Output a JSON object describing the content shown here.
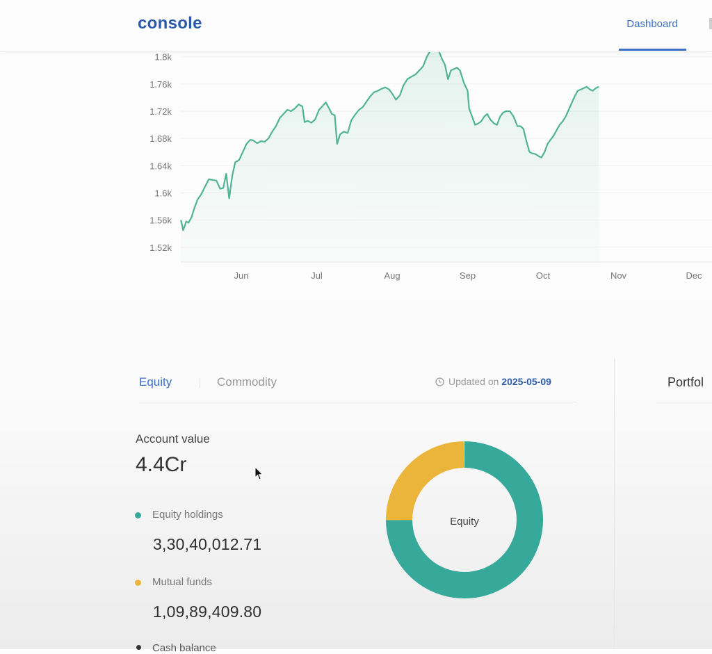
{
  "header": {
    "logo": "console",
    "nav": [
      {
        "label": "Dashboard",
        "active": true
      }
    ]
  },
  "colors": {
    "brand": "#2b5aa8",
    "accent": "#3b6fc6",
    "line": "#4fb394",
    "equity": "#36a99a",
    "mutual_funds": "#ebb53c",
    "cash": "#333333"
  },
  "chart_data": {
    "type": "area",
    "y_ticks": [
      "1.8k",
      "1.76k",
      "1.72k",
      "1.68k",
      "1.64k",
      "1.6k",
      "1.56k",
      "1.52k"
    ],
    "y_tick_values": [
      1800,
      1760,
      1720,
      1680,
      1640,
      1600,
      1560,
      1520
    ],
    "x_ticks": [
      "Jun",
      "Jul",
      "Aug",
      "Sep",
      "Oct",
      "Nov",
      "Dec"
    ],
    "x_tick_months": [
      1,
      2,
      3,
      4,
      5,
      6,
      7
    ],
    "x_range_months": [
      0.2,
      7.25
    ],
    "ylim": [
      1500,
      1808
    ],
    "grid": true,
    "series": [
      {
        "points": [
          [
            0.2,
            1560
          ],
          [
            0.23,
            1545
          ],
          [
            0.27,
            1558
          ],
          [
            0.3,
            1556
          ],
          [
            0.34,
            1564
          ],
          [
            0.38,
            1578
          ],
          [
            0.42,
            1590
          ],
          [
            0.47,
            1598
          ],
          [
            0.51,
            1607
          ],
          [
            0.57,
            1620
          ],
          [
            0.62,
            1619
          ],
          [
            0.67,
            1618
          ],
          [
            0.72,
            1606
          ],
          [
            0.76,
            1607
          ],
          [
            0.8,
            1628
          ],
          [
            0.84,
            1592
          ],
          [
            0.88,
            1625
          ],
          [
            0.92,
            1645
          ],
          [
            0.97,
            1648
          ],
          [
            1.02,
            1660
          ],
          [
            1.07,
            1672
          ],
          [
            1.12,
            1678
          ],
          [
            1.16,
            1677
          ],
          [
            1.21,
            1673
          ],
          [
            1.26,
            1676
          ],
          [
            1.31,
            1675
          ],
          [
            1.36,
            1680
          ],
          [
            1.41,
            1690
          ],
          [
            1.46,
            1698
          ],
          [
            1.51,
            1710
          ],
          [
            1.56,
            1716
          ],
          [
            1.61,
            1722
          ],
          [
            1.66,
            1720
          ],
          [
            1.71,
            1724
          ],
          [
            1.76,
            1730
          ],
          [
            1.81,
            1727
          ],
          [
            1.84,
            1704
          ],
          [
            1.88,
            1706
          ],
          [
            1.93,
            1703
          ],
          [
            1.98,
            1708
          ],
          [
            2.03,
            1722
          ],
          [
            2.08,
            1728
          ],
          [
            2.12,
            1733
          ],
          [
            2.17,
            1723
          ],
          [
            2.2,
            1716
          ],
          [
            2.24,
            1714
          ],
          [
            2.27,
            1672
          ],
          [
            2.31,
            1686
          ],
          [
            2.36,
            1690
          ],
          [
            2.41,
            1688
          ],
          [
            2.46,
            1707
          ],
          [
            2.51,
            1715
          ],
          [
            2.56,
            1722
          ],
          [
            2.61,
            1726
          ],
          [
            2.66,
            1734
          ],
          [
            2.71,
            1742
          ],
          [
            2.76,
            1748
          ],
          [
            2.81,
            1750
          ],
          [
            2.86,
            1753
          ],
          [
            2.91,
            1755
          ],
          [
            2.96,
            1752
          ],
          [
            3.0,
            1746
          ],
          [
            3.05,
            1737
          ],
          [
            3.1,
            1743
          ],
          [
            3.15,
            1758
          ],
          [
            3.2,
            1767
          ],
          [
            3.26,
            1771
          ],
          [
            3.31,
            1774
          ],
          [
            3.36,
            1780
          ],
          [
            3.41,
            1786
          ],
          [
            3.46,
            1800
          ],
          [
            3.5,
            1808
          ],
          [
            3.56,
            1808
          ],
          [
            3.62,
            1808
          ],
          [
            3.66,
            1797
          ],
          [
            3.7,
            1788
          ],
          [
            3.74,
            1767
          ],
          [
            3.78,
            1780
          ],
          [
            3.82,
            1782
          ],
          [
            3.86,
            1784
          ],
          [
            3.9,
            1780
          ],
          [
            3.95,
            1762
          ],
          [
            4.0,
            1750
          ],
          [
            4.02,
            1724
          ],
          [
            4.06,
            1712
          ],
          [
            4.1,
            1700
          ],
          [
            4.14,
            1702
          ],
          [
            4.18,
            1705
          ],
          [
            4.22,
            1712
          ],
          [
            4.26,
            1716
          ],
          [
            4.3,
            1708
          ],
          [
            4.35,
            1702
          ],
          [
            4.39,
            1700
          ],
          [
            4.43,
            1712
          ],
          [
            4.47,
            1718
          ],
          [
            4.51,
            1720
          ],
          [
            4.56,
            1720
          ],
          [
            4.61,
            1712
          ],
          [
            4.66,
            1698
          ],
          [
            4.7,
            1698
          ],
          [
            4.74,
            1694
          ],
          [
            4.78,
            1676
          ],
          [
            4.82,
            1660
          ],
          [
            4.86,
            1658
          ],
          [
            4.9,
            1657
          ],
          [
            4.94,
            1654
          ],
          [
            4.98,
            1652
          ],
          [
            5.02,
            1660
          ],
          [
            5.06,
            1672
          ],
          [
            5.1,
            1678
          ],
          [
            5.14,
            1684
          ],
          [
            5.18,
            1692
          ],
          [
            5.22,
            1700
          ],
          [
            5.26,
            1705
          ],
          [
            5.3,
            1712
          ],
          [
            5.34,
            1722
          ],
          [
            5.38,
            1732
          ],
          [
            5.42,
            1742
          ],
          [
            5.46,
            1750
          ],
          [
            5.5,
            1752
          ],
          [
            5.54,
            1754
          ],
          [
            5.58,
            1756
          ],
          [
            5.62,
            1752
          ],
          [
            5.66,
            1750
          ],
          [
            5.7,
            1754
          ],
          [
            5.74,
            1756
          ]
        ]
      }
    ]
  },
  "portfolio": {
    "tabs": [
      {
        "label": "Equity",
        "active": true
      },
      {
        "label": "Commodity",
        "active": false
      }
    ],
    "updated_prefix": "Updated on",
    "updated_date": "2025-05-09",
    "account_label": "Account value",
    "account_value": "4.4Cr",
    "breakdown": [
      {
        "label": "Equity holdings",
        "value": "3,30,40,012.71"
      },
      {
        "label": "Mutual funds",
        "value": "1,09,89,409.80"
      },
      {
        "label": "Cash balance",
        "value": ""
      }
    ],
    "donut_center": "Equity",
    "donut_shares": [
      0.7495,
      0.2495
    ],
    "right_panel_title": "Portfol"
  }
}
